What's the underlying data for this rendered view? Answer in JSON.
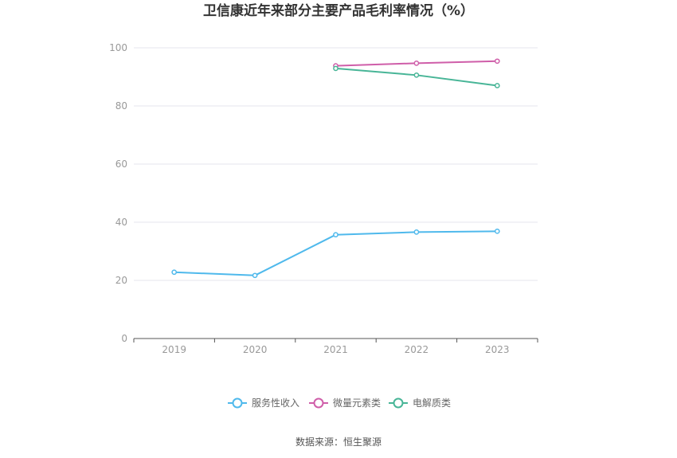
{
  "chart_data": {
    "type": "line",
    "title": "卫信康近年来部分主要产品毛利率情况（%）",
    "categories": [
      "2019",
      "2020",
      "2021",
      "2022",
      "2023"
    ],
    "ylim": [
      0,
      100
    ],
    "yticks": [
      0,
      20,
      40,
      60,
      80,
      100
    ],
    "grid": true,
    "legend_position": "bottom",
    "series": [
      {
        "name": "服务性收入",
        "color": "#4fb9ec",
        "values": [
          22.8,
          21.7,
          35.7,
          36.6,
          36.9
        ]
      },
      {
        "name": "微量元素类",
        "color": "#cf5ea9",
        "values": [
          null,
          null,
          93.8,
          94.7,
          95.4
        ]
      },
      {
        "name": "电解质类",
        "color": "#48b597",
        "values": [
          null,
          null,
          92.9,
          90.6,
          87.0
        ]
      }
    ],
    "source": "数据来源：恒生聚源"
  }
}
